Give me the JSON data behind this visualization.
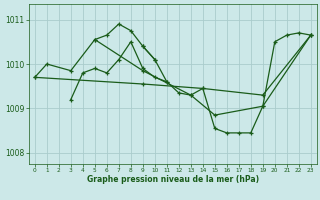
{
  "background_color": "#cce8e8",
  "line_color": "#1a5c1a",
  "grid_color": "#aacccc",
  "xlabel": "Graphe pression niveau de la mer (hPa)",
  "xlabel_color": "#1a5c1a",
  "tick_color": "#1a5c1a",
  "xlim": [
    -0.5,
    23.5
  ],
  "ylim": [
    1007.75,
    1011.35
  ],
  "yticks": [
    1008,
    1009,
    1010,
    1011
  ],
  "xticks": [
    0,
    1,
    2,
    3,
    4,
    5,
    6,
    7,
    8,
    9,
    10,
    11,
    12,
    13,
    14,
    15,
    16,
    17,
    18,
    19,
    20,
    21,
    22,
    23
  ],
  "seg1_x": [
    0,
    1,
    3,
    5,
    6,
    7,
    8,
    9,
    10
  ],
  "seg1_y": [
    1009.7,
    1010.0,
    1009.85,
    1010.55,
    1010.65,
    1010.9,
    1010.75,
    1010.4,
    1010.1
  ],
  "seg2_x": [
    3,
    4,
    5,
    6,
    7,
    8,
    9,
    10,
    11
  ],
  "seg2_y": [
    1009.2,
    1009.8,
    1009.9,
    1009.8,
    1010.1,
    1010.5,
    1009.9,
    1009.7,
    1009.6
  ],
  "seg3_x": [
    0,
    9,
    14,
    19,
    23
  ],
  "seg3_y": [
    1009.7,
    1009.55,
    1009.45,
    1009.3,
    1010.65
  ],
  "seg4_x": [
    9,
    10,
    11,
    12,
    13,
    14,
    15,
    16,
    17,
    18,
    19,
    20,
    21,
    22,
    23
  ],
  "seg4_y": [
    1010.4,
    1010.1,
    1009.6,
    1009.35,
    1009.3,
    1009.45,
    1008.55,
    1008.45,
    1008.45,
    1008.45,
    1009.05,
    1010.5,
    1010.65,
    1010.7,
    1010.65
  ],
  "seg5_x": [
    5,
    9,
    13,
    15,
    19,
    23
  ],
  "seg5_y": [
    1010.55,
    1009.85,
    1009.3,
    1008.85,
    1009.05,
    1010.65
  ]
}
